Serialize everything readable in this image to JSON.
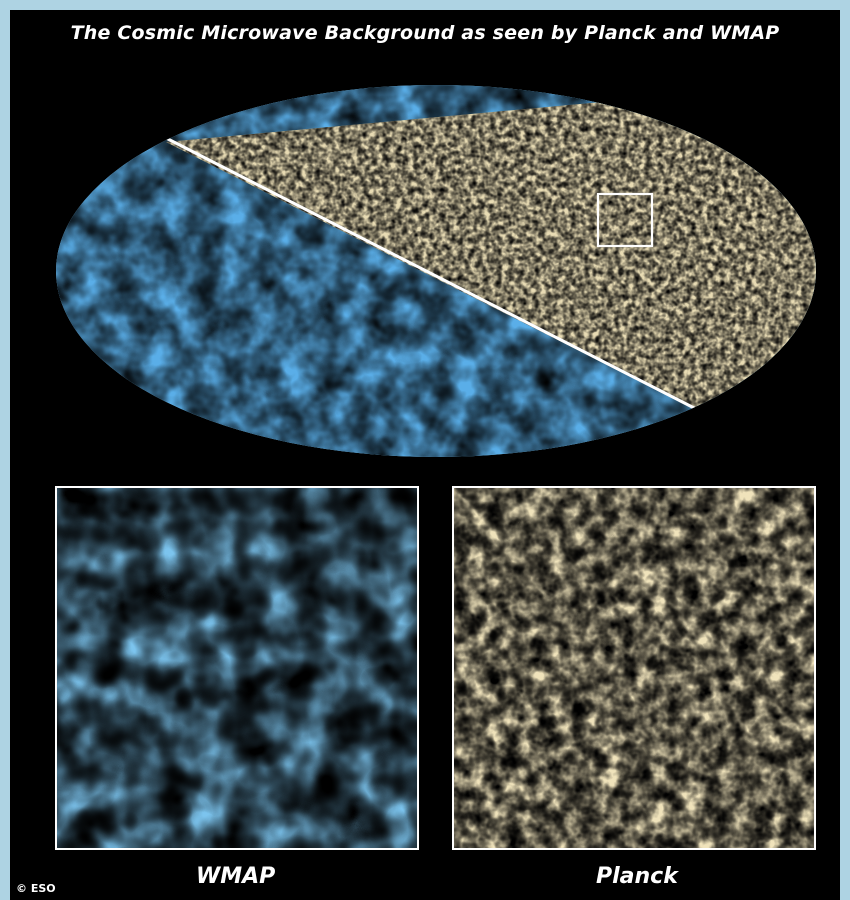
{
  "title": "The Cosmic Microwave Background as seen by Planck and WMAP",
  "panels": {
    "wmap_label": "WMAP",
    "planck_label": "Planck"
  },
  "credit": "© ESO",
  "colors": {
    "background_frame": "#aed3e3",
    "panel": "#000000",
    "cold": "#1a5fd4",
    "cool": "#5db0ec",
    "neutral": "#f3ebc4",
    "warm": "#f0a43c",
    "hot": "#d4561e"
  }
}
